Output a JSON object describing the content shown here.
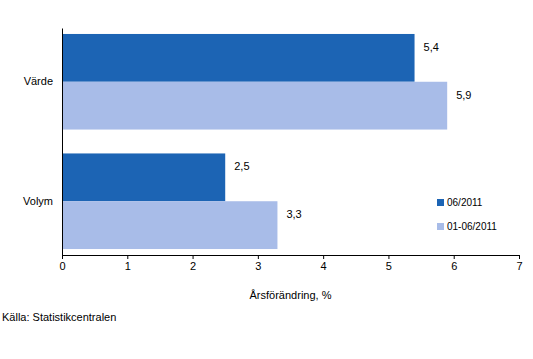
{
  "chart_data": {
    "type": "bar",
    "orientation": "horizontal",
    "categories": [
      "Värde",
      "Volym"
    ],
    "series": [
      {
        "name": "06/2011",
        "color": "#1c64b4",
        "values": [
          5.4,
          2.5
        ],
        "value_labels": [
          "5,4",
          "2,5"
        ]
      },
      {
        "name": "01-06/2011",
        "color": "#a8bce8",
        "values": [
          5.9,
          3.3
        ],
        "value_labels": [
          "5,9",
          "3,3"
        ]
      }
    ],
    "x_label": "Årsförändring, %",
    "xlim": [
      0,
      7
    ],
    "xticks": [
      0,
      1,
      2,
      3,
      4,
      5,
      6,
      7
    ],
    "grid": false,
    "legend": "bottom-right",
    "data_labels": true,
    "annotations": [
      "Källa: Statistikcentralen"
    ]
  }
}
